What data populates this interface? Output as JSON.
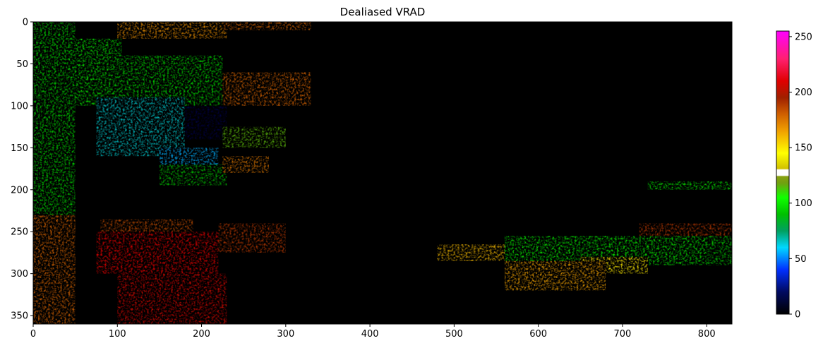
{
  "chart_data": {
    "type": "heatmap",
    "title": "Dealiased VRAD",
    "xlabel": "",
    "ylabel": "",
    "xlim": [
      0,
      830
    ],
    "ylim": [
      360,
      0
    ],
    "x_ticks": [
      0,
      100,
      200,
      300,
      400,
      500,
      600,
      700,
      800
    ],
    "y_ticks": [
      0,
      50,
      100,
      150,
      200,
      250,
      300,
      350
    ],
    "colorbar": {
      "range": [
        0,
        255
      ],
      "ticks": [
        0,
        50,
        100,
        150,
        200,
        250
      ],
      "colors": [
        {
          "value": 0,
          "color": "#000000"
        },
        {
          "value": 20,
          "color": "#000a60"
        },
        {
          "value": 40,
          "color": "#0030ff"
        },
        {
          "value": 60,
          "color": "#00d8ff"
        },
        {
          "value": 75,
          "color": "#00a060"
        },
        {
          "value": 90,
          "color": "#00c000"
        },
        {
          "value": 105,
          "color": "#10ff00"
        },
        {
          "value": 118,
          "color": "#70a010"
        },
        {
          "value": 124,
          "color": "#88a010"
        },
        {
          "value": 125,
          "color": "#ffffff"
        },
        {
          "value": 130,
          "color": "#ffffff"
        },
        {
          "value": 131,
          "color": "#d0c000"
        },
        {
          "value": 145,
          "color": "#ffff00"
        },
        {
          "value": 165,
          "color": "#f0a000"
        },
        {
          "value": 180,
          "color": "#d06000"
        },
        {
          "value": 195,
          "color": "#a02000"
        },
        {
          "value": 210,
          "color": "#e00000"
        },
        {
          "value": 230,
          "color": "#ff2070"
        },
        {
          "value": 255,
          "color": "#ff00ff"
        }
      ]
    },
    "regions": [
      {
        "x": [
          100,
          230
        ],
        "y": [
          0,
          20
        ],
        "value": 170
      },
      {
        "x": [
          225,
          330
        ],
        "y": [
          0,
          10
        ],
        "value": 180
      },
      {
        "x": [
          0,
          50
        ],
        "y": [
          0,
          230
        ],
        "value": 95
      },
      {
        "x": [
          50,
          105
        ],
        "y": [
          20,
          100
        ],
        "value": 100
      },
      {
        "x": [
          95,
          225
        ],
        "y": [
          40,
          100
        ],
        "value": 95
      },
      {
        "x": [
          225,
          330
        ],
        "y": [
          60,
          100
        ],
        "value": 180
      },
      {
        "x": [
          75,
          180
        ],
        "y": [
          90,
          160
        ],
        "value": 65
      },
      {
        "x": [
          180,
          230
        ],
        "y": [
          100,
          140
        ],
        "value": 15
      },
      {
        "x": [
          225,
          300
        ],
        "y": [
          125,
          150
        ],
        "value": 115
      },
      {
        "x": [
          150,
          220
        ],
        "y": [
          150,
          175
        ],
        "value": 55
      },
      {
        "x": [
          150,
          230
        ],
        "y": [
          170,
          195
        ],
        "value": 90
      },
      {
        "x": [
          225,
          280
        ],
        "y": [
          160,
          180
        ],
        "value": 175
      },
      {
        "x": [
          0,
          50
        ],
        "y": [
          230,
          360
        ],
        "value": 180
      },
      {
        "x": [
          80,
          190
        ],
        "y": [
          235,
          260
        ],
        "value": 185
      },
      {
        "x": [
          75,
          220
        ],
        "y": [
          250,
          300
        ],
        "value": 210
      },
      {
        "x": [
          100,
          230
        ],
        "y": [
          300,
          360
        ],
        "value": 205
      },
      {
        "x": [
          220,
          300
        ],
        "y": [
          240,
          275
        ],
        "value": 190
      },
      {
        "x": [
          480,
          560
        ],
        "y": [
          265,
          285
        ],
        "value": 160
      },
      {
        "x": [
          560,
          830
        ],
        "y": [
          255,
          290
        ],
        "value": 100
      },
      {
        "x": [
          650,
          730
        ],
        "y": [
          280,
          300
        ],
        "value": 150
      },
      {
        "x": [
          560,
          680
        ],
        "y": [
          285,
          320
        ],
        "value": 165
      },
      {
        "x": [
          720,
          830
        ],
        "y": [
          240,
          255
        ],
        "value": 190
      },
      {
        "x": [
          800,
          830
        ],
        "y": [
          265,
          290
        ],
        "value": 90
      },
      {
        "x": [
          730,
          830
        ],
        "y": [
          190,
          200
        ],
        "value": 100
      }
    ]
  }
}
